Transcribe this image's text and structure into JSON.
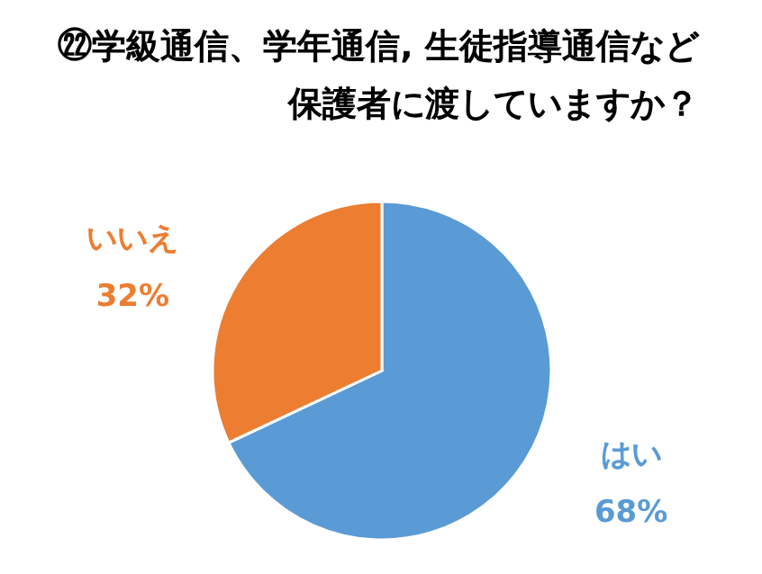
{
  "chart_data": {
    "type": "pie",
    "title": "㉒学級通信、学年通信, 生徒指導通信など保護者に渡していますか？",
    "categories": [
      "はい",
      "いいえ"
    ],
    "values": [
      68,
      32
    ],
    "colors": [
      "#5b9bd5",
      "#ed7d31"
    ],
    "value_labels": [
      "68%",
      "32%"
    ]
  }
}
